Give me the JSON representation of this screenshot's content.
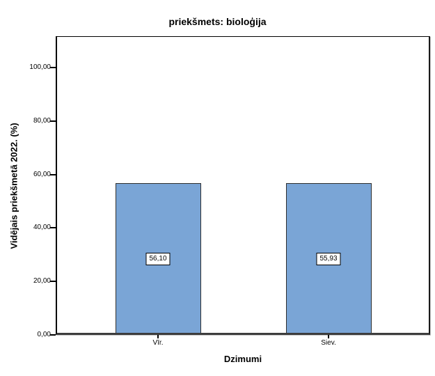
{
  "figure": {
    "background_color": "#ffffff"
  },
  "chart_data": {
    "type": "bar",
    "title": "priekšmets: bioloģija",
    "xlabel": "Dzimumi",
    "ylabel": "Vidējais priekšmetā 2022. (%)",
    "categories": [
      "Vīr.",
      "Siev."
    ],
    "values": [
      56.1,
      55.93
    ],
    "data_labels": [
      "56,10",
      "55,93"
    ],
    "series": [
      {
        "name": "Vidējais priekšmetā 2022. (%)",
        "values": [
          56.1,
          55.93
        ]
      }
    ],
    "y_ticks": [
      {
        "value": 0,
        "label": "0,00"
      },
      {
        "value": 20,
        "label": "20,00"
      },
      {
        "value": 40,
        "label": "40,00"
      },
      {
        "value": 60,
        "label": "60,00"
      },
      {
        "value": 80,
        "label": "80,00"
      },
      {
        "value": 100,
        "label": "100,00"
      }
    ],
    "ylim": [
      0,
      111.7
    ],
    "grid": false,
    "legend_position": "none",
    "bar_color": "#7aa5d6",
    "bar_border_color": "#2e2e2e",
    "value_box_background": "#ffffff",
    "value_box_border": "#000000"
  }
}
